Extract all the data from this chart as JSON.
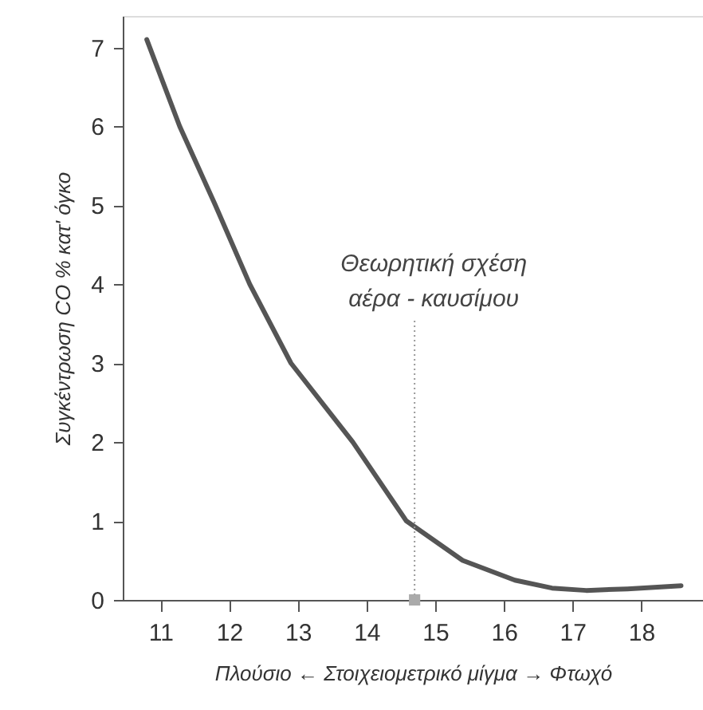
{
  "chart_data": {
    "type": "line",
    "xlabel": "Πλούσιο ← Στοιχειομετρικό μίγμα → Φτωχό",
    "ylabel": "Συγκέντρωση CO % κατ' όγκο",
    "series": [
      {
        "color": "#555555",
        "x": [
          10.8,
          11.28,
          11.8,
          12.3,
          12.9,
          13.8,
          14.58,
          15.4,
          16.16,
          16.7,
          17.2,
          17.8,
          18.58
        ],
        "values": [
          7.1,
          6,
          5,
          4,
          3,
          2,
          1,
          0.5,
          0.25,
          0.15,
          0.12,
          0.14,
          0.18
        ]
      }
    ],
    "annotations": [
      {
        "text": "Θεωρητική σχέση αέρα - καυσίμου",
        "x": 14.7,
        "y": 0
      }
    ],
    "xlim": [
      10.45,
      18.9
    ],
    "ylim": [
      0,
      7.4
    ],
    "xticks": [
      11,
      12,
      13,
      14,
      15,
      16,
      17,
      18
    ],
    "yticks": [
      0,
      1,
      2,
      3,
      4,
      5,
      6,
      7
    ],
    "grid": false,
    "marker": "none",
    "line_style": "solid"
  }
}
